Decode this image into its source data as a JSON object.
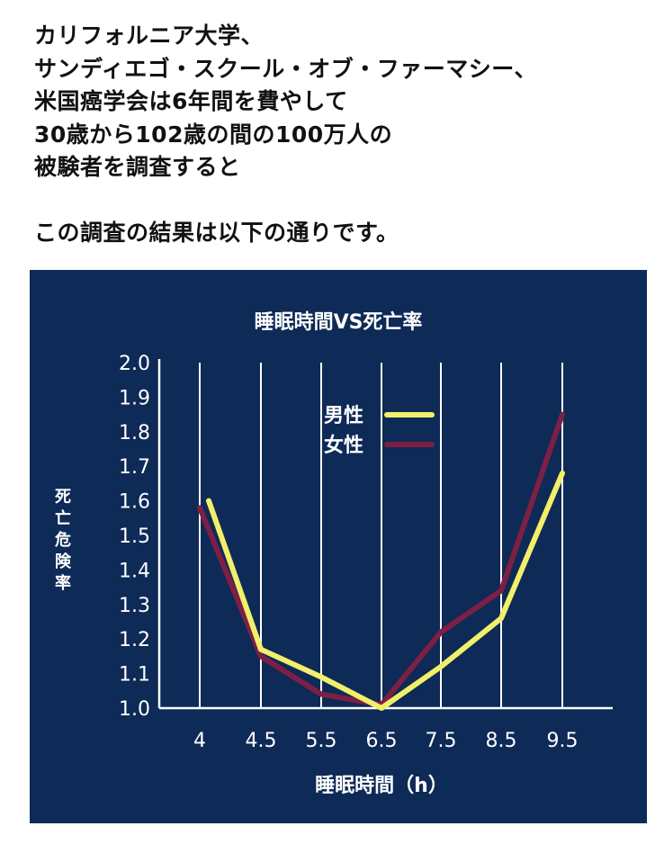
{
  "intro": {
    "lines": [
      "カリフォルニア大学、",
      "サンディエゴ・スクール・オブ・ファーマシー、",
      "米国癌学会は6年間を費やして",
      "30歳から102歳の間の100万人の",
      "被験者を調査すると"
    ],
    "conclusion": "この調査の結果は以下の通りです。"
  },
  "chart_data": {
    "type": "line",
    "title": "睡眠時間VS死亡率",
    "xlabel": "睡眠時間（h）",
    "ylabel": "死亡危険率",
    "categories": [
      "4",
      "4.5",
      "5.5",
      "6.5",
      "7.5",
      "8.5",
      "9.5"
    ],
    "ylim": [
      1.0,
      2.0
    ],
    "yticks": [
      "1.0",
      "1.1",
      "1.2",
      "1.3",
      "1.4",
      "1.5",
      "1.6",
      "1.7",
      "1.8",
      "1.9",
      "2.0"
    ],
    "grid": "vertical lines",
    "legend_position": "top-center",
    "series": [
      {
        "name": "男性",
        "color": "#f2ef6a",
        "values": [
          1.6,
          1.17,
          1.09,
          1.0,
          1.12,
          1.26,
          1.68
        ]
      },
      {
        "name": "女性",
        "color": "#7d1f45",
        "values": [
          1.58,
          1.15,
          1.04,
          1.01,
          1.22,
          1.34,
          1.85
        ]
      }
    ],
    "colors": {
      "background": "#0e2a57",
      "grid": "#ffffff",
      "text": "#ffffff"
    }
  }
}
